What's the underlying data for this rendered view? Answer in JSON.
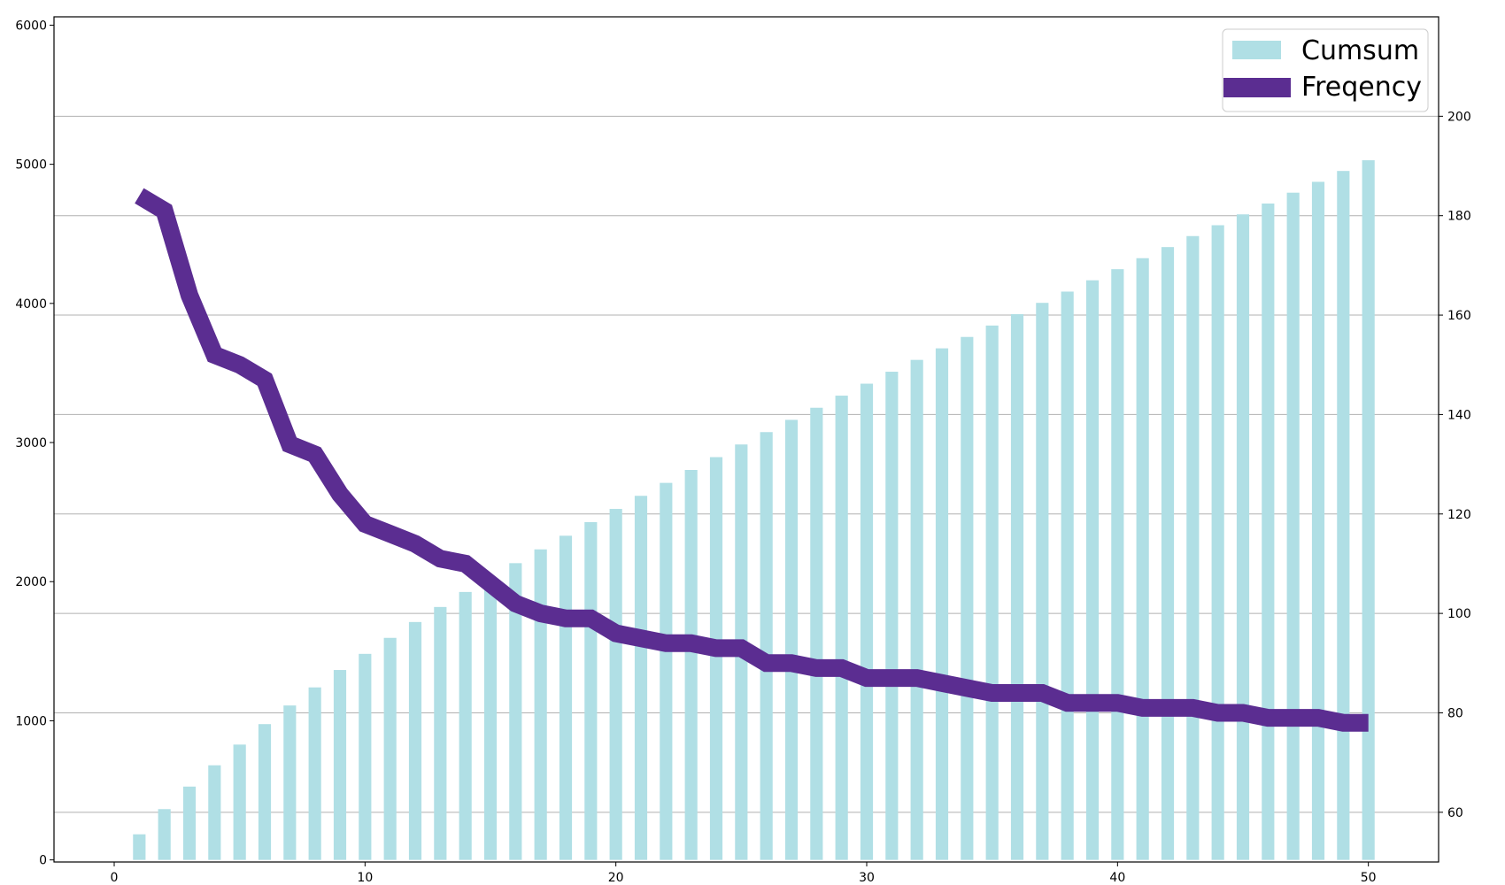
{
  "chart_data": {
    "type": "bar+line",
    "title": "",
    "xlabel": "",
    "ylabel": "",
    "x": [
      1,
      2,
      3,
      4,
      5,
      6,
      7,
      8,
      9,
      10,
      11,
      12,
      13,
      14,
      15,
      16,
      17,
      18,
      19,
      20,
      21,
      22,
      23,
      24,
      25,
      26,
      27,
      28,
      29,
      30,
      31,
      32,
      33,
      34,
      35,
      36,
      37,
      38,
      39,
      40,
      41,
      42,
      43,
      44,
      45,
      46,
      47,
      48,
      49,
      50
    ],
    "xlim": [
      -2.4,
      52.8
    ],
    "xticks": [
      0,
      10,
      20,
      30,
      40,
      50
    ],
    "grid": "horizontal, right axis",
    "legend_position": "top-right",
    "series": [
      {
        "name": "Cumsum",
        "kind": "bar",
        "axis": "left",
        "color": "#b0dfe5",
        "values": [
          184,
          365,
          527,
          680,
          829,
          976,
          1110,
          1240,
          1365,
          1481,
          1596,
          1710,
          1818,
          1926,
          2031,
          2133,
          2232,
          2330,
          2428,
          2523,
          2617,
          2710,
          2803,
          2895,
          2986,
          3075,
          3163,
          3250,
          3337,
          3423,
          3509,
          3594,
          3677,
          3759,
          3841,
          3923,
          4004,
          4085,
          4166,
          4246,
          4325,
          4405,
          4484,
          4562,
          4640,
          4718,
          4796,
          4874,
          4952,
          5029
        ],
        "ylim": [
          -15,
          6060
        ],
        "yticks": [
          0,
          1000,
          2000,
          3000,
          4000,
          5000,
          6000
        ]
      },
      {
        "name": "Freqency",
        "kind": "line",
        "axis": "right",
        "color": "#5b2d91",
        "values": [
          184,
          181,
          164,
          152,
          150,
          147,
          134,
          132,
          124,
          118,
          116,
          114,
          111,
          110,
          106,
          102,
          100,
          99,
          99,
          96,
          95,
          94,
          94,
          93,
          93,
          90,
          90,
          89,
          89,
          87,
          87,
          87,
          86,
          85,
          84,
          84,
          84,
          82,
          82,
          82,
          81,
          81,
          81,
          80,
          80,
          79,
          79,
          79,
          78,
          78
        ],
        "ylim": [
          50,
          220
        ],
        "yticks": [
          60,
          80,
          100,
          120,
          140,
          160,
          180,
          200
        ]
      }
    ]
  }
}
